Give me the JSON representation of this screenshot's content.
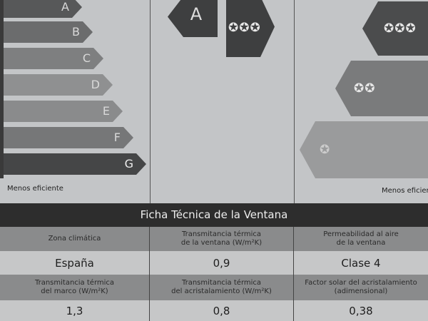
{
  "scale": {
    "classes": [
      "A",
      "B",
      "C",
      "D",
      "E",
      "F",
      "G"
    ],
    "less_efficient": "Menos eficiente"
  },
  "window_rating": {
    "class": "A",
    "stars": "✪✪✪"
  },
  "permeability_scale": {
    "levels": [
      "✪✪✪",
      "✪✪",
      "✪"
    ],
    "less_efficient": "Menos eficiente"
  },
  "table": {
    "title": "Ficha Técnica de la Ventana",
    "row1": {
      "headers": [
        "Zona climática",
        "Transmitancia térmica\nde la ventana (W/m²K)",
        "Permeabilidad al aire\nde la ventana"
      ],
      "values": [
        "España",
        "0,9",
        "Clase 4"
      ]
    },
    "row2": {
      "headers": [
        "Transmitancia térmica\ndel marco (W/m²K)",
        "Transmitancia térmica\ndel acristalamiento (W/m²K)",
        "Factor solar del acristalamiento\n(adimensional)"
      ],
      "values": [
        "1,3",
        "0,8",
        "0,38"
      ]
    }
  }
}
